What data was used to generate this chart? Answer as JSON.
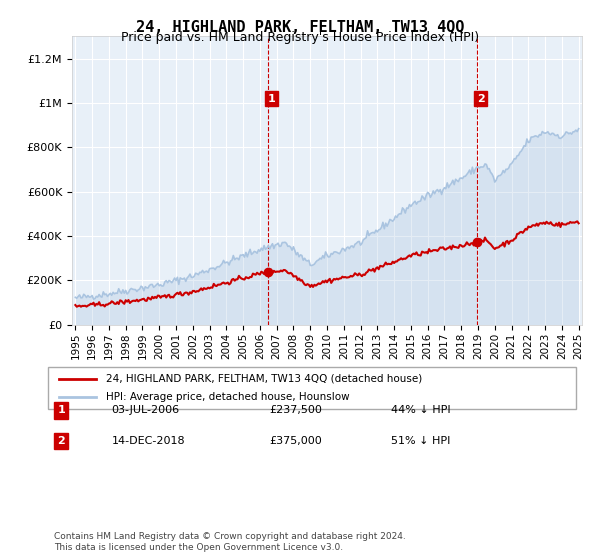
{
  "title": "24, HIGHLAND PARK, FELTHAM, TW13 4QQ",
  "subtitle": "Price paid vs. HM Land Registry's House Price Index (HPI)",
  "legend_line1": "24, HIGHLAND PARK, FELTHAM, TW13 4QQ (detached house)",
  "legend_line2": "HPI: Average price, detached house, Hounslow",
  "footnote": "Contains HM Land Registry data © Crown copyright and database right 2024.\nThis data is licensed under the Open Government Licence v3.0.",
  "annotation1_label": "1",
  "annotation1_date": "03-JUL-2006",
  "annotation1_price": "£237,500",
  "annotation1_hpi": "44% ↓ HPI",
  "annotation2_label": "2",
  "annotation2_date": "14-DEC-2018",
  "annotation2_price": "£375,000",
  "annotation2_hpi": "51% ↓ HPI",
  "sale1_x": 2006.5,
  "sale1_y": 237500,
  "sale2_x": 2018.96,
  "sale2_y": 375000,
  "ylim": [
    0,
    1300000
  ],
  "xlim_start": 1995,
  "xlim_end": 2025,
  "hpi_color": "#aac4e0",
  "price_color": "#cc0000",
  "bg_color": "#ddeeff",
  "plot_bg": "#e8f0f8",
  "grid_color": "#ffffff",
  "annotation_box_color": "#cc0000"
}
